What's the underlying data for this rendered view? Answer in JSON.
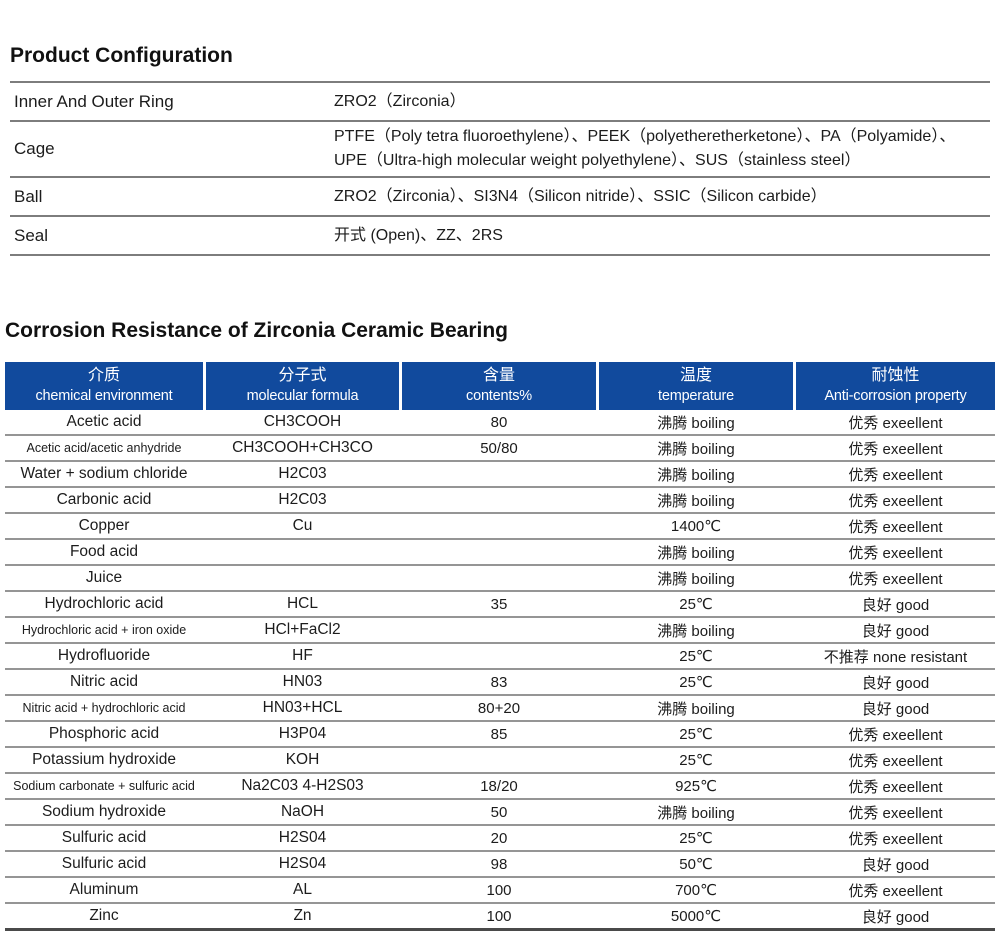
{
  "product_configuration": {
    "title": "Product Configuration",
    "rows": [
      {
        "label": "Inner And Outer Ring",
        "value": "ZRO2（Zirconia）"
      },
      {
        "label": "Cage",
        "value": "PTFE（Poly tetra fluoroethylene）、PEEK（polyetheretherketone）、PA（Polyamide）、UPE（Ultra-high molecular weight polyethylene）、SUS（stainless steel）"
      },
      {
        "label": "Ball",
        "value": "ZRO2（Zirconia）、SI3N4（Silicon nitride）、SSIC（Silicon carbide）"
      },
      {
        "label": "Seal",
        "value": "开式 (Open)、ZZ、2RS"
      }
    ]
  },
  "corrosion_table": {
    "title": "Corrosion Resistance of Zirconia Ceramic Bearing",
    "header_color": "#114a9d",
    "columns": [
      {
        "zh": "介质",
        "en": "chemical environment"
      },
      {
        "zh": "分子式",
        "en": "molecular formula"
      },
      {
        "zh": "含量",
        "en": "contents%"
      },
      {
        "zh": "温度",
        "en": "temperature"
      },
      {
        "zh": "耐蚀性",
        "en": "Anti-corrosion property"
      }
    ],
    "rows": [
      [
        "Acetic acid",
        "CH3COOH",
        "80",
        "沸腾 boiling",
        "优秀 exeellent"
      ],
      [
        "Acetic acid/acetic anhydride",
        "CH3COOH+CH3CO",
        "50/80",
        "沸腾 boiling",
        "优秀 exeellent"
      ],
      [
        "Water + sodium chloride",
        "H2C03",
        "",
        "沸腾 boiling",
        "优秀 exeellent"
      ],
      [
        "Carbonic acid",
        "H2C03",
        "",
        "沸腾 boiling",
        "优秀 exeellent"
      ],
      [
        "Copper",
        "Cu",
        "",
        "1400℃",
        "优秀 exeellent"
      ],
      [
        "Food acid",
        "",
        "",
        "沸腾 boiling",
        "优秀 exeellent"
      ],
      [
        "Juice",
        "",
        "",
        "沸腾 boiling",
        "优秀 exeellent"
      ],
      [
        "Hydrochloric acid",
        "HCL",
        "35",
        "25℃",
        "良好 good"
      ],
      [
        "Hydrochloric acid + iron oxide",
        "HCl+FaCl2",
        "",
        "沸腾 boiling",
        "良好 good"
      ],
      [
        "Hydrofluoride",
        "HF",
        "",
        "25℃",
        "不推荐 none resistant"
      ],
      [
        "Nitric acid",
        "HN03",
        "83",
        "25℃",
        "良好 good"
      ],
      [
        "Nitric acid + hydrochloric acid",
        "HN03+HCL",
        "80+20",
        "沸腾 boiling",
        "良好 good"
      ],
      [
        "Phosphoric acid",
        "H3P04",
        "85",
        "25℃",
        "优秀 exeellent"
      ],
      [
        "Potassium hydroxide",
        "KOH",
        "",
        "25℃",
        "优秀 exeellent"
      ],
      [
        "Sodium carbonate + sulfuric acid",
        "Na2C03 4-H2S03",
        "18/20",
        "925℃",
        "优秀 exeellent"
      ],
      [
        "Sodium hydroxide",
        "NaOH",
        "50",
        "沸腾 boiling",
        "优秀 exeellent"
      ],
      [
        "Sulfuric acid",
        "H2S04",
        "20",
        "25℃",
        "优秀 exeellent"
      ],
      [
        "Sulfuric acid",
        "H2S04",
        "98",
        "50℃",
        "良好 good"
      ],
      [
        "Aluminum",
        "AL",
        "100",
        "700℃",
        "优秀 exeellent"
      ],
      [
        "Zinc",
        "Zn",
        "100",
        "5000℃",
        "良好 good"
      ]
    ]
  }
}
